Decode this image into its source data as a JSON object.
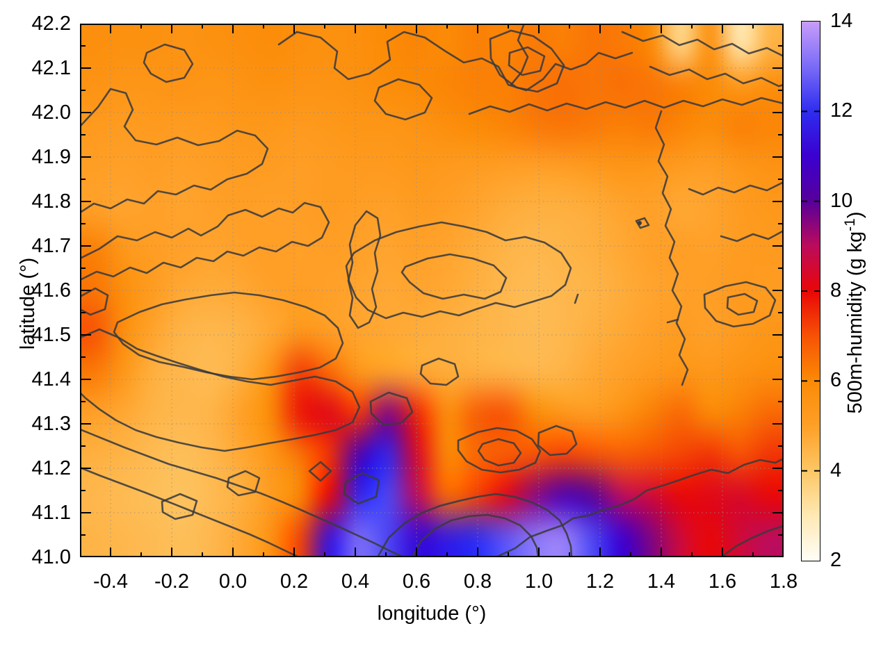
{
  "figure": {
    "background": "#ffffff",
    "contour_color": "#3a3a3e",
    "axis_color": "#000000"
  },
  "chart_data": {
    "type": "heatmap",
    "title": "",
    "xlabel": "longitude (°)",
    "ylabel": "latitude (°)",
    "colorbar_label": "500m-humidity (g kg⁻¹)",
    "colorbar_label_parts": {
      "main": "500m-humidity (g kg",
      "sup": "-1",
      "close": ")"
    },
    "x_range": [
      -0.5,
      1.8
    ],
    "y_range": [
      41.0,
      42.2
    ],
    "colorbar_range": [
      2,
      14
    ],
    "x_major_ticks": [
      -0.4,
      -0.2,
      0.0,
      0.2,
      0.4,
      0.6,
      0.8,
      1.0,
      1.2,
      1.4,
      1.6,
      1.8
    ],
    "x_tick_labels": [
      "-0.4",
      "-0.2",
      "0.0",
      "0.2",
      "0.4",
      "0.6",
      "0.8",
      "1.0",
      "1.2",
      "1.4",
      "1.6",
      "1.8"
    ],
    "x_minor_step": 0.1,
    "y_major_ticks": [
      41.0,
      41.1,
      41.2,
      41.3,
      41.4,
      41.5,
      41.6,
      41.7,
      41.8,
      41.9,
      42.0,
      42.1,
      42.2
    ],
    "y_tick_labels": [
      "41.0",
      "41.1",
      "41.2",
      "41.3",
      "41.4",
      "41.5",
      "41.6",
      "41.7",
      "41.8",
      "41.9",
      "42.0",
      "42.1",
      "42.2"
    ],
    "y_minor_step": 0.05,
    "colorbar_ticks": [
      2,
      4,
      6,
      8,
      10,
      12,
      14
    ],
    "colorbar_tick_labels": [
      "2",
      "4",
      "6",
      "8",
      "10",
      "12",
      "14"
    ],
    "grid": "dotted gray at major ticks",
    "legend_position": "right colorbar",
    "palette": [
      {
        "value": 2,
        "color": "#fffef8"
      },
      {
        "value": 3,
        "color": "#ffe9b4"
      },
      {
        "value": 4,
        "color": "#fdc765"
      },
      {
        "value": 5,
        "color": "#ffa028"
      },
      {
        "value": 6,
        "color": "#fb8b06"
      },
      {
        "value": 7,
        "color": "#f75305"
      },
      {
        "value": 8,
        "color": "#e90707"
      },
      {
        "value": 9,
        "color": "#bc0c5c"
      },
      {
        "value": 10,
        "color": "#58009b"
      },
      {
        "value": 11,
        "color": "#3c00d0"
      },
      {
        "value": 12,
        "color": "#2f2df0"
      },
      {
        "value": 13,
        "color": "#7b6cf7"
      },
      {
        "value": 14,
        "color": "#c89dfa"
      }
    ],
    "grid_lon_start": -0.5,
    "grid_lon_step": 0.1,
    "grid_lat_start": 42.2,
    "grid_lat_step": -0.1,
    "humidity_grid_g_per_kg": [
      [
        5.8,
        5.7,
        5.7,
        5.6,
        5.7,
        5.8,
        5.9,
        5.8,
        5.7,
        5.8,
        6.0,
        6.1,
        6.0,
        6.2,
        6.1,
        6.3,
        6.2,
        6.4,
        6.3,
        6.0,
        3.5,
        5.8,
        3.0,
        4.5
      ],
      [
        5.6,
        5.5,
        5.5,
        5.6,
        5.5,
        5.6,
        5.7,
        5.6,
        5.6,
        5.7,
        5.9,
        6.0,
        6.1,
        6.2,
        6.2,
        6.4,
        6.5,
        6.4,
        6.5,
        6.4,
        6.2,
        6.0,
        5.4,
        5.8
      ],
      [
        5.3,
        5.2,
        5.3,
        5.2,
        5.3,
        5.4,
        5.4,
        5.3,
        5.4,
        5.5,
        5.5,
        5.6,
        5.8,
        6.0,
        6.1,
        6.3,
        6.4,
        6.3,
        6.2,
        6.3,
        6.1,
        5.9,
        6.2,
        6.1
      ],
      [
        5.1,
        5.0,
        5.1,
        5.0,
        5.1,
        5.2,
        5.2,
        5.1,
        5.2,
        5.3,
        5.3,
        5.4,
        5.3,
        5.2,
        5.1,
        5.0,
        5.1,
        5.3,
        5.5,
        5.4,
        5.2,
        5.1,
        5.4,
        5.6
      ],
      [
        5.0,
        4.9,
        5.0,
        4.9,
        5.0,
        5.1,
        5.0,
        5.1,
        5.2,
        5.1,
        5.0,
        5.2,
        5.1,
        4.9,
        4.7,
        4.6,
        4.6,
        4.7,
        4.9,
        5.0,
        4.8,
        4.9,
        5.2,
        5.4
      ],
      [
        6.2,
        5.4,
        5.1,
        5.0,
        4.9,
        5.0,
        5.1,
        5.0,
        5.1,
        5.0,
        4.9,
        5.0,
        4.9,
        4.7,
        4.5,
        4.4,
        4.5,
        4.6,
        4.8,
        5.0,
        5.1,
        5.0,
        5.2,
        5.3
      ],
      [
        6.4,
        5.8,
        5.2,
        4.8,
        4.7,
        4.8,
        5.0,
        5.1,
        5.0,
        4.9,
        4.8,
        4.9,
        4.8,
        4.6,
        4.4,
        4.3,
        4.4,
        4.5,
        4.7,
        4.9,
        5.0,
        5.1,
        5.3,
        5.2
      ],
      [
        7.0,
        5.8,
        4.9,
        4.5,
        4.4,
        4.5,
        4.8,
        5.4,
        5.1,
        4.9,
        4.8,
        4.7,
        4.6,
        4.5,
        4.4,
        4.3,
        4.4,
        4.6,
        4.8,
        5.0,
        5.2,
        5.0,
        5.3,
        5.5
      ],
      [
        6.3,
        5.4,
        4.6,
        4.4,
        4.3,
        4.6,
        5.6,
        7.3,
        6.6,
        5.4,
        5.0,
        4.8,
        4.7,
        4.6,
        4.5,
        4.4,
        4.5,
        4.8,
        5.0,
        5.3,
        5.5,
        5.4,
        5.6,
        5.8
      ],
      [
        5.0,
        4.8,
        4.5,
        4.4,
        4.5,
        5.0,
        6.0,
        7.8,
        8.2,
        7.4,
        9.6,
        7.6,
        5.8,
        6.8,
        7.0,
        6.0,
        5.4,
        5.2,
        5.6,
        6.2,
        6.6,
        6.0,
        6.2,
        6.6
      ],
      [
        4.6,
        4.5,
        4.3,
        4.2,
        4.4,
        4.8,
        5.4,
        6.4,
        7.4,
        10.5,
        11.8,
        8.4,
        6.0,
        6.6,
        6.8,
        7.0,
        7.2,
        7.0,
        6.8,
        7.0,
        7.2,
        7.4,
        7.0,
        7.4
      ],
      [
        4.4,
        4.3,
        4.2,
        4.1,
        4.3,
        4.6,
        5.2,
        6.0,
        8.0,
        11.8,
        12.4,
        9.0,
        6.6,
        7.2,
        8.2,
        9.5,
        10.5,
        10.0,
        9.0,
        8.6,
        8.0,
        8.2,
        8.4,
        8.0
      ],
      [
        4.5,
        4.4,
        4.3,
        4.2,
        4.4,
        4.8,
        5.6,
        7.2,
        11.4,
        13.0,
        12.4,
        11.2,
        11.6,
        12.0,
        12.6,
        13.2,
        13.4,
        12.4,
        11.0,
        9.6,
        8.6,
        8.0,
        8.6,
        9.0
      ]
    ],
    "overlay": "unlabeled dark-gray terrain contour lines"
  }
}
